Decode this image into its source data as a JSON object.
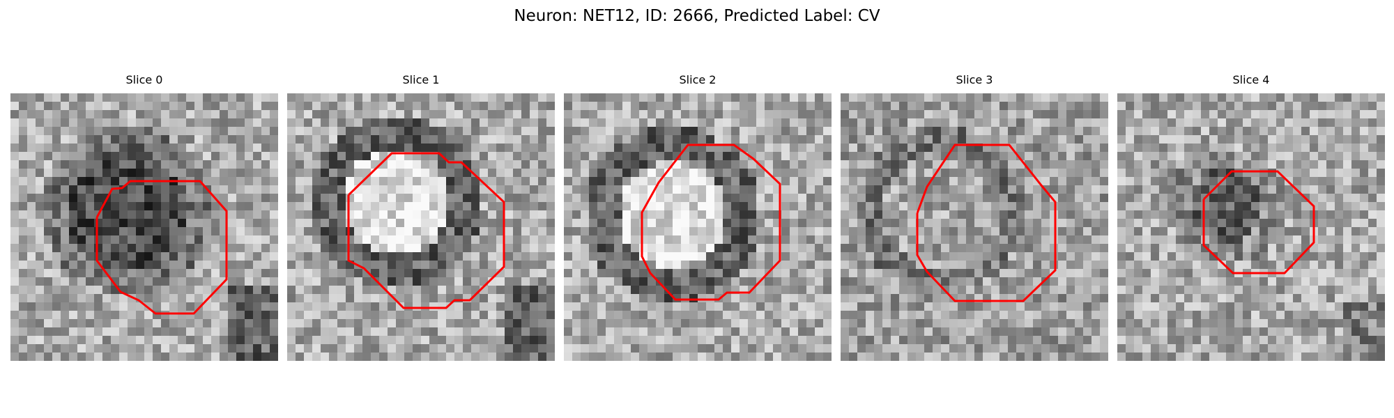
{
  "figure": {
    "title": "Neuron: NET12, ID: 2666, Predicted Label: CV"
  },
  "panels": [
    {
      "title": "Slice 0",
      "seed": 11,
      "ring": "dark-filled",
      "contour": "octagon-a"
    },
    {
      "title": "Slice 1",
      "seed": 23,
      "ring": "dark-ring-bright-center",
      "contour": "octagon-b"
    },
    {
      "title": "Slice 2",
      "seed": 37,
      "ring": "dark-ring-bright-center",
      "contour": "octagon-c"
    },
    {
      "title": "Slice 3",
      "seed": 51,
      "ring": "faint-ring",
      "contour": "octagon-d"
    },
    {
      "title": "Slice 4",
      "seed": 67,
      "ring": "small-dark-blob",
      "contour": "octagon-e"
    }
  ],
  "colors": {
    "contour": "#ff0000",
    "background": "#ffffff"
  }
}
